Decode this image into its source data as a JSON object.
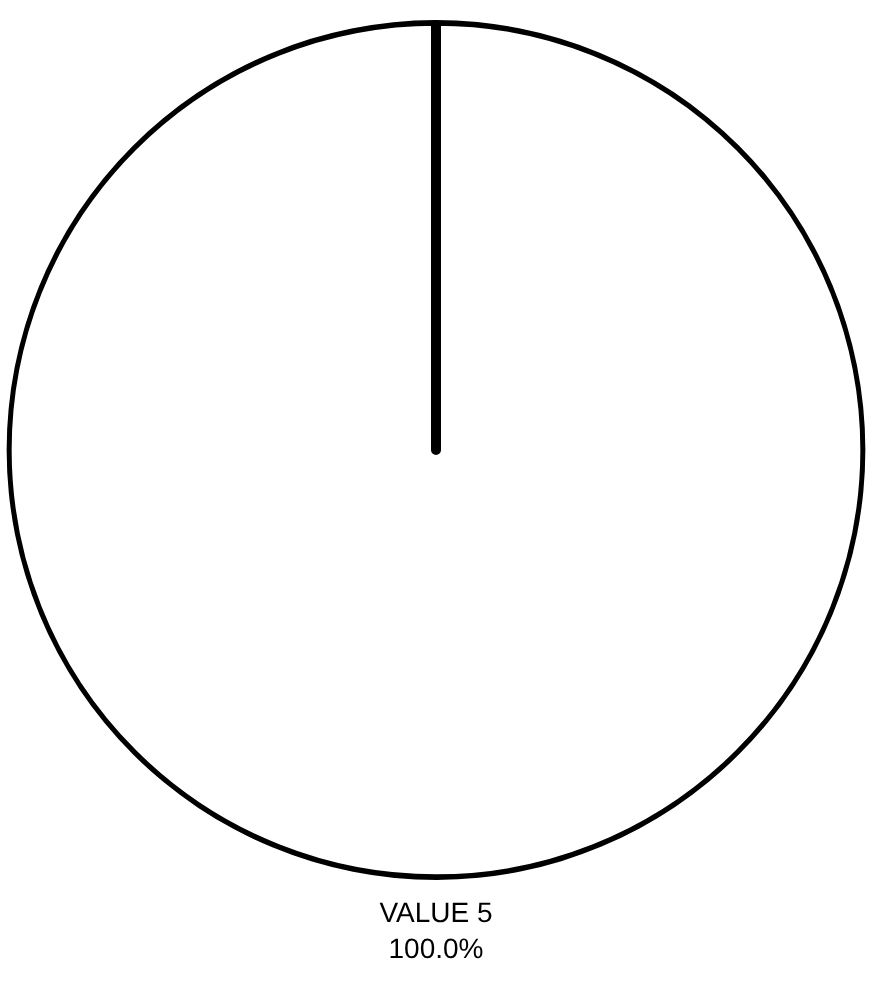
{
  "chart_data": {
    "type": "pie",
    "categories": [
      "VALUE 5"
    ],
    "values": [
      100
    ],
    "colors": [
      "#ffffff"
    ],
    "value_labels": [
      "100.0%"
    ],
    "legend": false
  }
}
